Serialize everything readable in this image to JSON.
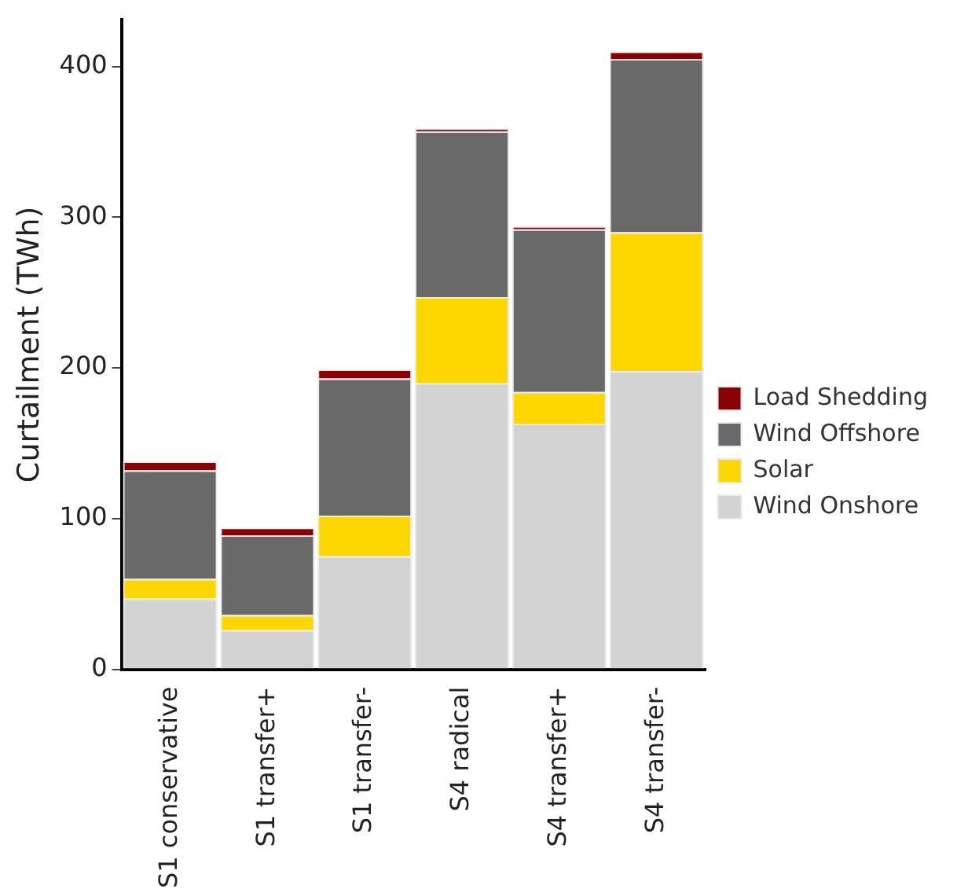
{
  "chart_data": {
    "type": "bar",
    "stacked": true,
    "ylabel": "Curtailment (TWh)",
    "categories": [
      "S1 conservative",
      "S1 transfer+",
      "S1 transfer-",
      "S4 radical",
      "S4 transfer+",
      "S4 transfer-"
    ],
    "series": [
      {
        "name": "Wind Onshore",
        "color": "#d3d3d3",
        "values": [
          47,
          26,
          75,
          190,
          163,
          198
        ]
      },
      {
        "name": "Solar",
        "color": "#ffd700",
        "values": [
          13,
          10,
          27,
          57,
          21,
          92
        ]
      },
      {
        "name": "Wind Offshore",
        "color": "#696969",
        "values": [
          72,
          53,
          91,
          110,
          108,
          115
        ]
      },
      {
        "name": "Load Shedding",
        "color": "#8b0000",
        "values": [
          6,
          5,
          6,
          2,
          2,
          5
        ]
      }
    ],
    "ylim": [
      0,
      431
    ],
    "yticks": [
      0,
      100,
      200,
      300,
      400
    ],
    "grid": false,
    "legend": "right"
  }
}
